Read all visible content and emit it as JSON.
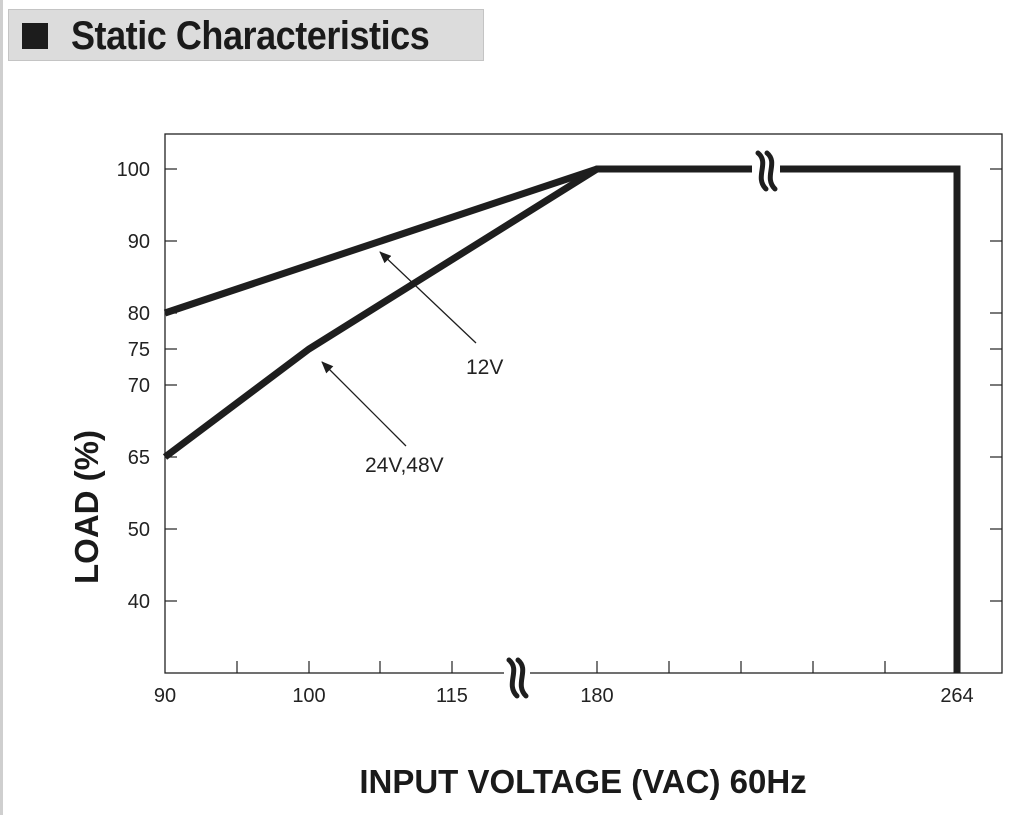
{
  "page": {
    "title": "Static Characteristics"
  },
  "chart_data": {
    "type": "line",
    "xlabel": "INPUT VOLTAGE (VAC) 60Hz",
    "ylabel": "LOAD (%)",
    "x_ticks": [
      "90",
      "100",
      "115",
      "180",
      "264"
    ],
    "y_ticks": [
      "40",
      "50",
      "65",
      "70",
      "75",
      "80",
      "90",
      "100"
    ],
    "x_axis_break": true,
    "series": [
      {
        "name": "12V",
        "points": [
          {
            "x": 90,
            "y": 80
          },
          {
            "x": 180,
            "y": 100
          },
          {
            "x": 264,
            "y": 100
          },
          {
            "x": 264,
            "y": 0
          }
        ]
      },
      {
        "name": "24V,48V",
        "points": [
          {
            "x": 90,
            "y": 65
          },
          {
            "x": 100,
            "y": 75
          },
          {
            "x": 180,
            "y": 100
          },
          {
            "x": 264,
            "y": 100
          },
          {
            "x": 264,
            "y": 0
          }
        ]
      }
    ],
    "grid": false
  }
}
